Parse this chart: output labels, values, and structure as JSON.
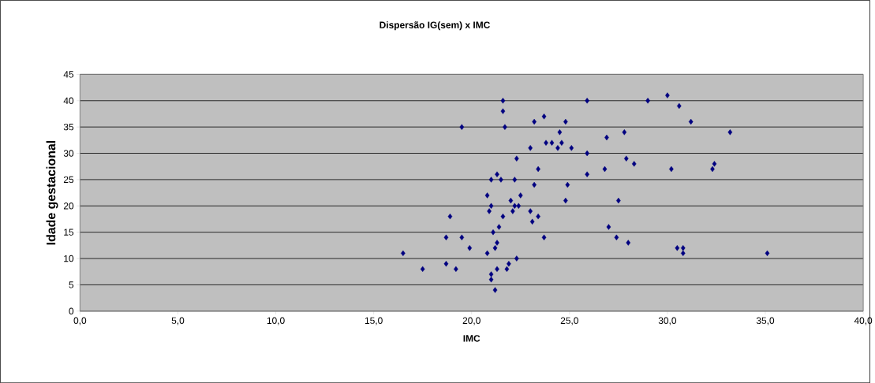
{
  "chart_data": {
    "type": "scatter",
    "title": "Dispersão IG(sem) x IMC",
    "xlabel": "IMC",
    "ylabel": "Idade gestacional",
    "xlim": [
      0,
      40
    ],
    "ylim": [
      0,
      45
    ],
    "xticks": [
      {
        "value": 0,
        "label": "0,0"
      },
      {
        "value": 5,
        "label": "5,0"
      },
      {
        "value": 10,
        "label": "10,0"
      },
      {
        "value": 15,
        "label": "15,0"
      },
      {
        "value": 20,
        "label": "20,0"
      },
      {
        "value": 25,
        "label": "25,0"
      },
      {
        "value": 30,
        "label": "30,0"
      },
      {
        "value": 35,
        "label": "35,0"
      },
      {
        "value": 40,
        "label": "40,0"
      }
    ],
    "yticks": [
      0,
      5,
      10,
      15,
      20,
      25,
      30,
      35,
      40,
      45
    ],
    "grid": "y",
    "marker": "diamond",
    "series": [
      {
        "color": "#000080",
        "x": [
          16.5,
          17.5,
          18.7,
          18.7,
          18.9,
          19.2,
          19.5,
          19.5,
          19.9,
          20.8,
          20.8,
          20.9,
          21.0,
          21.0,
          21.0,
          21.1,
          21.0,
          21.2,
          21.2,
          21.3,
          21.4,
          21.3,
          21.3,
          21.5,
          21.6,
          21.6,
          21.7,
          21.6,
          21.8,
          21.9,
          22.0,
          22.1,
          22.2,
          22.3,
          22.2,
          22.3,
          22.5,
          22.4,
          23.0,
          23.0,
          23.1,
          23.2,
          23.2,
          23.4,
          23.4,
          23.7,
          23.7,
          23.8,
          24.1,
          24.4,
          24.5,
          24.6,
          24.8,
          24.8,
          24.9,
          25.1,
          25.9,
          25.9,
          25.9,
          26.8,
          26.9,
          27.0,
          27.4,
          27.5,
          27.8,
          27.9,
          28.0,
          28.3,
          29.0,
          30.0,
          30.2,
          30.5,
          30.6,
          30.8,
          30.8,
          31.2,
          32.3,
          32.4,
          33.2,
          35.1
        ],
        "values": [
          11,
          8,
          14,
          9,
          18,
          8,
          14,
          35,
          12,
          11,
          22,
          19,
          25,
          20,
          6,
          15,
          7,
          4,
          12,
          13,
          16,
          8,
          26,
          25,
          40,
          38,
          35,
          18,
          8,
          9,
          21,
          19,
          25,
          29,
          20,
          10,
          22,
          20,
          19,
          31,
          17,
          24,
          36,
          27,
          18,
          37,
          14,
          32,
          32,
          31,
          34,
          32,
          36,
          21,
          24,
          31,
          40,
          30,
          26,
          27,
          33,
          16,
          14,
          21,
          34,
          29,
          13,
          28,
          40,
          41,
          27,
          12,
          39,
          11,
          12,
          36,
          27,
          28,
          34,
          11
        ]
      }
    ]
  }
}
